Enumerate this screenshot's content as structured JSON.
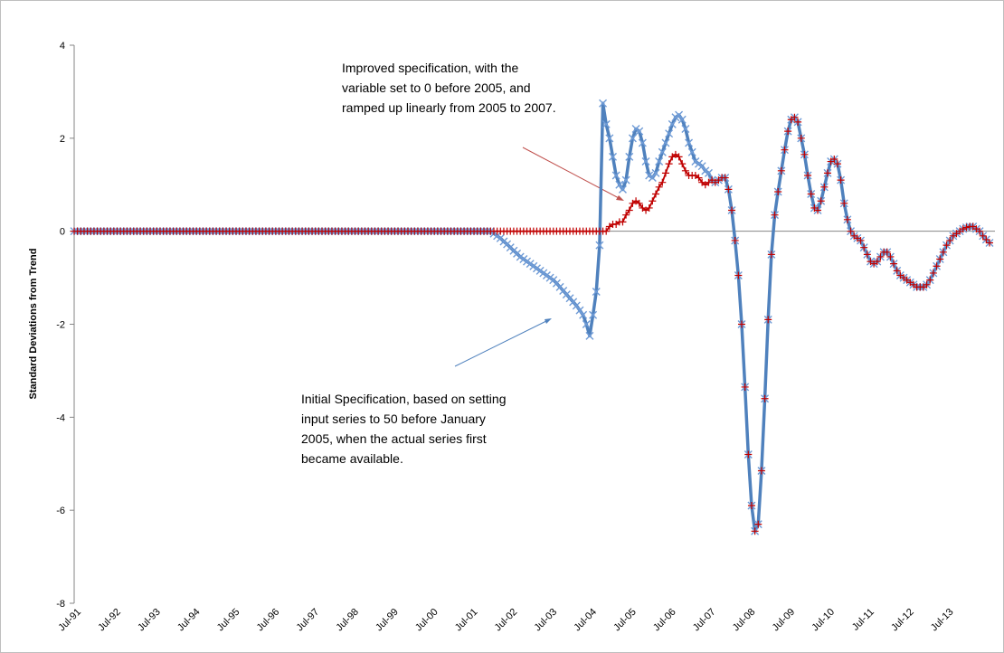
{
  "chart_data": {
    "type": "line",
    "ylabel": "Standard Deviations from Trend",
    "ylim": [
      -8,
      4
    ],
    "yticks": [
      4,
      2,
      0,
      -2,
      -4,
      -6,
      -8
    ],
    "annotations": [
      {
        "lines": [
          "Improved specification, with the",
          "variable set to 0 before 2005, and",
          "ramped up linearly from 2005 to 2007."
        ],
        "color": "#c00000"
      },
      {
        "lines": [
          "Initial Specification, based on setting",
          "input series to 50 before January",
          "2005, when the actual series first",
          "became available."
        ],
        "color": "#1f78c1"
      }
    ],
    "categories": [
      "Jul-91",
      null,
      null,
      null,
      null,
      null,
      null,
      null,
      null,
      null,
      null,
      null,
      "Jul-92",
      null,
      null,
      null,
      null,
      null,
      null,
      null,
      null,
      null,
      null,
      null,
      "Jul-93",
      null,
      null,
      null,
      null,
      null,
      null,
      null,
      null,
      null,
      null,
      null,
      "Jul-94",
      null,
      null,
      null,
      null,
      null,
      null,
      null,
      null,
      null,
      null,
      null,
      "Jul-95",
      null,
      null,
      null,
      null,
      null,
      null,
      null,
      null,
      null,
      null,
      null,
      "Jul-96",
      null,
      null,
      null,
      null,
      null,
      null,
      null,
      null,
      null,
      null,
      null,
      "Jul-97",
      null,
      null,
      null,
      null,
      null,
      null,
      null,
      null,
      null,
      null,
      null,
      "Jul-98",
      null,
      null,
      null,
      null,
      null,
      null,
      null,
      null,
      null,
      null,
      null,
      "Jul-99",
      null,
      null,
      null,
      null,
      null,
      null,
      null,
      null,
      null,
      null,
      null,
      "Jul-00",
      null,
      null,
      null,
      null,
      null,
      null,
      null,
      null,
      null,
      null,
      null,
      "Jul-01",
      null,
      null,
      null,
      null,
      null,
      null,
      null,
      null,
      null,
      null,
      null,
      "Jul-02",
      null,
      null,
      null,
      null,
      null,
      null,
      null,
      null,
      null,
      null,
      null,
      "Jul-03",
      null,
      null,
      null,
      null,
      null,
      null,
      null,
      null,
      null,
      null,
      null,
      "Jul-04",
      null,
      null,
      null,
      null,
      null,
      null,
      null,
      null,
      null,
      null,
      null,
      "Jul-05",
      null,
      null,
      null,
      null,
      null,
      null,
      null,
      null,
      null,
      null,
      null,
      "Jul-06",
      null,
      null,
      null,
      null,
      null,
      null,
      null,
      null,
      null,
      null,
      null,
      "Jul-07",
      null,
      null,
      null,
      null,
      null,
      null,
      null,
      null,
      null,
      null,
      null,
      "Jul-08",
      null,
      null,
      null,
      null,
      null,
      null,
      null,
      null,
      null,
      null,
      null,
      "Jul-09",
      null,
      null,
      null,
      null,
      null,
      null,
      null,
      null,
      null,
      null,
      null,
      "Jul-10",
      null,
      null,
      null,
      null,
      null,
      null,
      null,
      null,
      null,
      null,
      null,
      "Jul-11",
      null,
      null,
      null,
      null,
      null,
      null,
      null,
      null,
      null,
      null,
      null,
      "Jul-12",
      null,
      null,
      null,
      null,
      null,
      null,
      null,
      null,
      null,
      null,
      null,
      "Jul-13",
      null,
      null,
      null,
      null,
      null,
      null,
      null,
      null,
      null,
      null,
      null,
      null,
      null
    ],
    "series": [
      {
        "color": "#4f81bd",
        "marker": "x",
        "values": [
          0,
          0,
          0,
          0,
          0,
          0,
          0,
          0,
          0,
          0,
          0,
          0,
          0,
          0,
          0,
          0,
          0,
          0,
          0,
          0,
          0,
          0,
          0,
          0,
          0,
          0,
          0,
          0,
          0,
          0,
          0,
          0,
          0,
          0,
          0,
          0,
          0,
          0,
          0,
          0,
          0,
          0,
          0,
          0,
          0,
          0,
          0,
          0,
          0,
          0,
          0,
          0,
          0,
          0,
          0,
          0,
          0,
          0,
          0,
          0,
          0,
          0,
          0,
          0,
          0,
          0,
          0,
          0,
          0,
          0,
          0,
          0,
          0,
          0,
          0,
          0,
          0,
          0,
          0,
          0,
          0,
          0,
          0,
          0,
          0,
          0,
          0,
          0,
          0,
          0,
          0,
          0,
          0,
          0,
          0,
          0,
          0,
          0,
          0,
          0,
          0,
          0,
          0,
          0,
          0,
          0,
          0,
          0,
          0,
          0,
          0,
          0,
          0,
          0,
          0,
          0,
          0,
          0,
          0,
          0,
          0,
          0,
          0,
          0,
          0,
          0,
          0,
          -0.05,
          -0.1,
          -0.15,
          -0.22,
          -0.28,
          -0.35,
          -0.42,
          -0.48,
          -0.55,
          -0.6,
          -0.65,
          -0.7,
          -0.75,
          -0.8,
          -0.85,
          -0.9,
          -0.95,
          -1.0,
          -1.05,
          -1.12,
          -1.2,
          -1.28,
          -1.36,
          -1.44,
          -1.52,
          -1.6,
          -1.7,
          -1.8,
          -2.0,
          -2.25,
          -1.8,
          -1.3,
          -0.3,
          2.75,
          2.3,
          2.0,
          1.6,
          1.2,
          1.0,
          0.9,
          1.1,
          1.6,
          2.0,
          2.2,
          2.15,
          1.9,
          1.5,
          1.2,
          1.15,
          1.25,
          1.5,
          1.7,
          1.9,
          2.1,
          2.3,
          2.45,
          2.5,
          2.4,
          2.2,
          1.9,
          1.7,
          1.5,
          1.45,
          1.4,
          1.3,
          1.25,
          1.1,
          1.05,
          1.1,
          1.15,
          1.15,
          0.9,
          0.45,
          -0.2,
          -0.95,
          -2.0,
          -3.35,
          -4.8,
          -5.9,
          -6.45,
          -6.3,
          -5.15,
          -3.6,
          -1.9,
          -0.5,
          0.35,
          0.85,
          1.3,
          1.75,
          2.15,
          2.4,
          2.45,
          2.35,
          2.0,
          1.65,
          1.2,
          0.8,
          0.5,
          0.45,
          0.65,
          0.95,
          1.25,
          1.5,
          1.55,
          1.45,
          1.1,
          0.6,
          0.25,
          0.0,
          -0.1,
          -0.15,
          -0.2,
          -0.35,
          -0.5,
          -0.65,
          -0.7,
          -0.65,
          -0.55,
          -0.45,
          -0.45,
          -0.55,
          -0.7,
          -0.85,
          -0.95,
          -1.0,
          -1.05,
          -1.1,
          -1.15,
          -1.2,
          -1.2,
          -1.2,
          -1.15,
          -1.05,
          -0.9,
          -0.75,
          -0.6,
          -0.45,
          -0.3,
          -0.2,
          -0.1,
          -0.05,
          0.0,
          0.05,
          0.08,
          0.1,
          0.1,
          0.05,
          0.0,
          -0.1,
          -0.18,
          -0.25
        ]
      },
      {
        "color": "#c00000",
        "marker": "+",
        "values": [
          0,
          0,
          0,
          0,
          0,
          0,
          0,
          0,
          0,
          0,
          0,
          0,
          0,
          0,
          0,
          0,
          0,
          0,
          0,
          0,
          0,
          0,
          0,
          0,
          0,
          0,
          0,
          0,
          0,
          0,
          0,
          0,
          0,
          0,
          0,
          0,
          0,
          0,
          0,
          0,
          0,
          0,
          0,
          0,
          0,
          0,
          0,
          0,
          0,
          0,
          0,
          0,
          0,
          0,
          0,
          0,
          0,
          0,
          0,
          0,
          0,
          0,
          0,
          0,
          0,
          0,
          0,
          0,
          0,
          0,
          0,
          0,
          0,
          0,
          0,
          0,
          0,
          0,
          0,
          0,
          0,
          0,
          0,
          0,
          0,
          0,
          0,
          0,
          0,
          0,
          0,
          0,
          0,
          0,
          0,
          0,
          0,
          0,
          0,
          0,
          0,
          0,
          0,
          0,
          0,
          0,
          0,
          0,
          0,
          0,
          0,
          0,
          0,
          0,
          0,
          0,
          0,
          0,
          0,
          0,
          0,
          0,
          0,
          0,
          0,
          0,
          0,
          0,
          0,
          0,
          0,
          0,
          0,
          0,
          0,
          0,
          0,
          0,
          0,
          0,
          0,
          0,
          0,
          0,
          0,
          0,
          0,
          0,
          0,
          0,
          0,
          0,
          0,
          0,
          0,
          0,
          0,
          0,
          0,
          0,
          0,
          0,
          0.1,
          0.15,
          0.15,
          0.2,
          0.2,
          0.35,
          0.45,
          0.6,
          0.65,
          0.6,
          0.5,
          0.45,
          0.5,
          0.65,
          0.8,
          0.95,
          1.05,
          1.25,
          1.45,
          1.6,
          1.65,
          1.6,
          1.45,
          1.3,
          1.2,
          1.2,
          1.2,
          1.15,
          1.05,
          1.0,
          1.05,
          1.1,
          1.05,
          1.1,
          1.15,
          1.15,
          0.9,
          0.45,
          -0.2,
          -0.95,
          -2.0,
          -3.35,
          -4.8,
          -5.9,
          -6.45,
          -6.3,
          -5.15,
          -3.6,
          -1.9,
          -0.5,
          0.35,
          0.85,
          1.3,
          1.75,
          2.15,
          2.4,
          2.45,
          2.35,
          2.0,
          1.65,
          1.2,
          0.8,
          0.5,
          0.45,
          0.65,
          0.95,
          1.25,
          1.5,
          1.55,
          1.45,
          1.1,
          0.6,
          0.25,
          0.0,
          -0.1,
          -0.15,
          -0.2,
          -0.35,
          -0.5,
          -0.65,
          -0.7,
          -0.65,
          -0.55,
          -0.45,
          -0.45,
          -0.55,
          -0.7,
          -0.85,
          -0.95,
          -1.0,
          -1.05,
          -1.1,
          -1.15,
          -1.2,
          -1.2,
          -1.2,
          -1.15,
          -1.05,
          -0.9,
          -0.75,
          -0.6,
          -0.45,
          -0.3,
          -0.2,
          -0.1,
          -0.05,
          0.0,
          0.05,
          0.08,
          0.1,
          0.1,
          0.05,
          0.0,
          -0.1,
          -0.18,
          -0.25
        ]
      }
    ]
  }
}
